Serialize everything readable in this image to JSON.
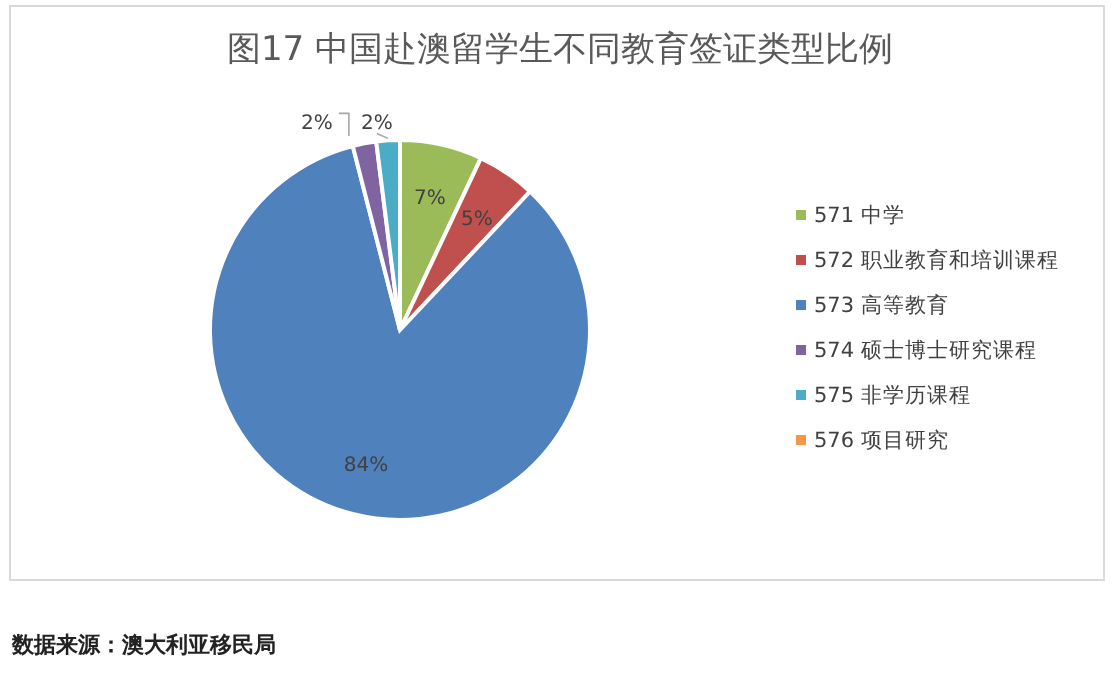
{
  "chart_data": {
    "type": "pie",
    "title": "图17  中国赴澳留学生不同教育签证类型比例",
    "categories": [
      "571 中学",
      "572 职业教育和培训课程",
      "573 高等教育",
      "574 硕士博士研究课程",
      "575 非学历课程",
      "576 项目研究"
    ],
    "values": [
      7,
      5,
      84,
      2,
      2,
      0
    ],
    "colors": [
      "#9bbb59",
      "#c0504d",
      "#4f81bd",
      "#8064a2",
      "#4bacc6",
      "#f79646"
    ],
    "value_labels": [
      "7%",
      "5%",
      "84%",
      "2%",
      "2%",
      null
    ],
    "legend": "right",
    "annotations": [
      "数据来源：澳大利亚移民局"
    ]
  }
}
